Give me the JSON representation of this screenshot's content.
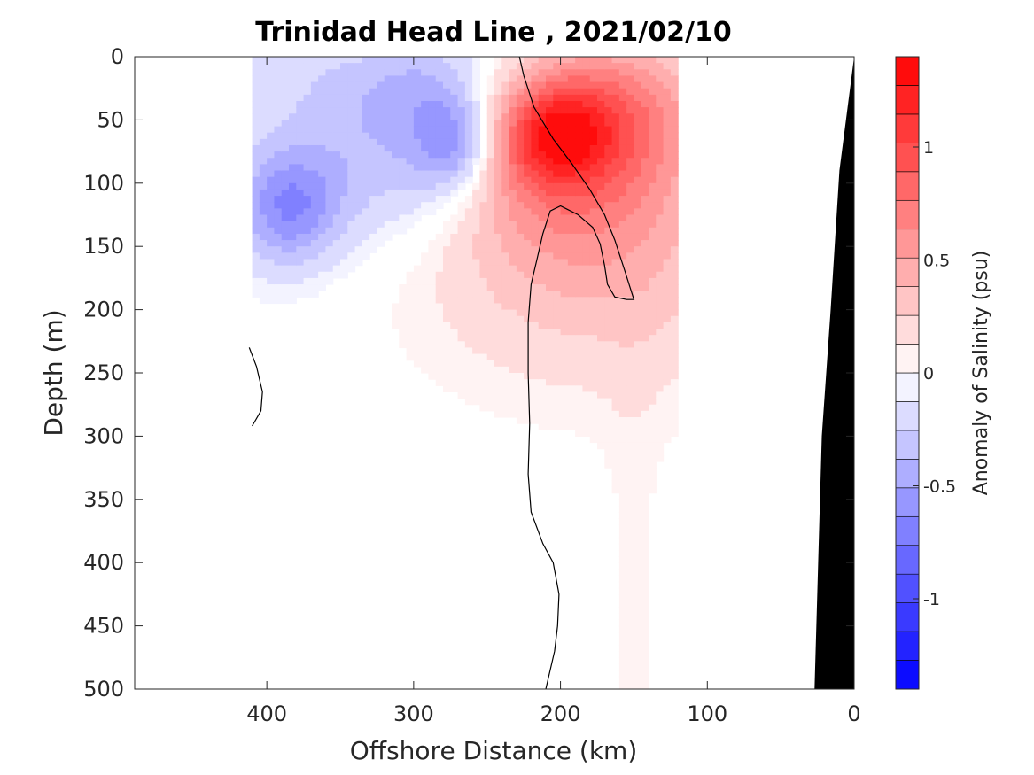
{
  "chart_data": {
    "type": "heatmap",
    "title": "Trinidad Head Line , 2021/02/10",
    "xlabel": "Offshore Distance (km)",
    "ylabel": "Depth (m)",
    "xlim": [
      490,
      0
    ],
    "ylim": [
      0,
      500
    ],
    "x_direction": "reversed",
    "y_direction": "reversed",
    "x_ticks": [
      400,
      300,
      200,
      100,
      0
    ],
    "y_ticks": [
      0,
      50,
      100,
      150,
      200,
      250,
      300,
      350,
      400,
      450,
      500
    ],
    "colorbar": {
      "label": "Anomaly of Salinity (psu)",
      "range": [
        -1.4,
        1.4
      ],
      "ticks": [
        -1,
        -0.5,
        0,
        0.5,
        1
      ],
      "levels": 22,
      "neg_color": "#0000ff",
      "pos_color": "#ff0000",
      "zero_color": "#ffffff"
    },
    "data_extent_km": [
      410,
      120
    ],
    "fields": [
      {
        "x": 410,
        "depth": 0,
        "rx": 60,
        "ry": 190,
        "value": -0.1
      },
      {
        "x": 335,
        "depth": 80,
        "rx": 55,
        "ry": 70,
        "value": -0.28
      },
      {
        "x": 385,
        "depth": 120,
        "rx": 35,
        "ry": 45,
        "value": -0.55
      },
      {
        "x": 285,
        "depth": 60,
        "rx": 40,
        "ry": 70,
        "value": -0.3
      },
      {
        "x": 270,
        "depth": 70,
        "rx": 25,
        "ry": 35,
        "value": -0.45
      },
      {
        "x": 300,
        "depth": 20,
        "rx": 80,
        "ry": 40,
        "value": -0.2
      },
      {
        "x": 170,
        "depth": 160,
        "rx": 130,
        "ry": 110,
        "value": 0.28
      },
      {
        "x": 190,
        "depth": 80,
        "rx": 75,
        "ry": 90,
        "value": 0.55
      },
      {
        "x": 205,
        "depth": 60,
        "rx": 38,
        "ry": 42,
        "value": 0.7
      },
      {
        "x": 155,
        "depth": 40,
        "rx": 55,
        "ry": 55,
        "value": 0.35
      },
      {
        "x": 150,
        "depth": 480,
        "rx": 20,
        "ry": 300,
        "value": 0.08
      }
    ],
    "zero_contours": [
      [
        [
          228,
          0
        ],
        [
          225,
          15
        ],
        [
          218,
          40
        ],
        [
          205,
          65
        ],
        [
          192,
          85
        ],
        [
          180,
          105
        ],
        [
          170,
          125
        ],
        [
          163,
          145
        ],
        [
          156,
          170
        ],
        [
          150,
          192
        ],
        [
          155,
          192
        ],
        [
          163,
          190
        ],
        [
          168,
          180
        ],
        [
          170,
          165
        ],
        [
          173,
          148
        ],
        [
          178,
          135
        ],
        [
          188,
          125
        ],
        [
          200,
          118
        ],
        [
          207,
          122
        ],
        [
          212,
          140
        ],
        [
          216,
          160
        ],
        [
          220,
          180
        ],
        [
          222,
          210
        ],
        [
          222,
          250
        ],
        [
          221,
          290
        ],
        [
          222,
          330
        ],
        [
          220,
          360
        ],
        [
          212,
          385
        ],
        [
          205,
          400
        ],
        [
          201,
          425
        ],
        [
          202,
          450
        ],
        [
          204,
          470
        ],
        [
          210,
          500
        ]
      ],
      [
        [
          412,
          230
        ],
        [
          407,
          245
        ],
        [
          403,
          265
        ],
        [
          404,
          280
        ],
        [
          410,
          292
        ]
      ]
    ],
    "bathymetry": [
      [
        0,
        0
      ],
      [
        10,
        90
      ],
      [
        16,
        200
      ],
      [
        22,
        300
      ],
      [
        27,
        500
      ],
      [
        0,
        500
      ]
    ]
  }
}
